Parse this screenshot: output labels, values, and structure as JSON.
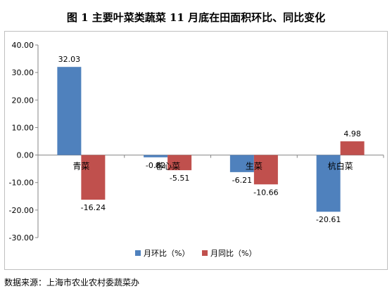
{
  "source_note": "数据来源：上海市农业农村委蔬菜办",
  "chart_data": {
    "type": "bar",
    "title": "图 1  主要叶菜类蔬菜 11 月底在田面积环比、同比变化",
    "categories": [
      "青菜",
      "卷心菜",
      "生菜",
      "杭白菜"
    ],
    "series": [
      {
        "name": "月环比（%）",
        "color": "#4f81bd",
        "values": [
          32.03,
          -0.82,
          -6.21,
          -20.61
        ],
        "labels": [
          "32.03",
          "-0.82",
          "-6.21",
          "-20.61"
        ]
      },
      {
        "name": "月同比（%）",
        "color": "#c0504d",
        "values": [
          -16.24,
          -5.51,
          -10.66,
          4.98
        ],
        "labels": [
          "-16.24",
          "-5.51",
          "-10.66",
          "4.98"
        ]
      }
    ],
    "ylim": [
      -30,
      40
    ],
    "yticks": [
      "40.00",
      "30.00",
      "20.00",
      "10.00",
      "0.00",
      "-10.00",
      "-20.00",
      "-30.00"
    ],
    "grid": false,
    "legend": "bottom",
    "xlabel": "",
    "ylabel": ""
  }
}
